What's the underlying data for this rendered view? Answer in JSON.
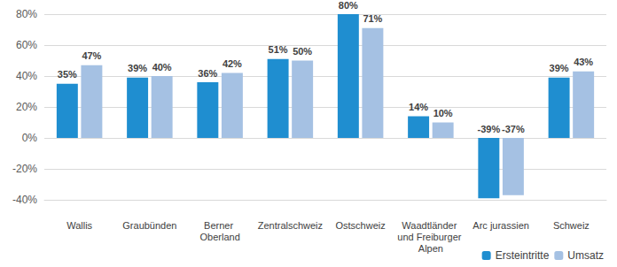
{
  "chart_data": {
    "type": "bar",
    "categories": [
      "Wallis",
      "Graubünden",
      "Berner Oberland",
      "Zentralschweiz",
      "Ostschweiz",
      "Waadtländer und Freiburger Alpen",
      "Arc jurassien",
      "Schweiz"
    ],
    "series": [
      {
        "name": "Ersteintritte",
        "color": "#1f8ed0",
        "values": [
          35,
          39,
          36,
          51,
          80,
          14,
          -39,
          39
        ],
        "value_labels": [
          "35%",
          "39%",
          "36%",
          "51%",
          "80%",
          "14%",
          "-39%",
          "39%"
        ]
      },
      {
        "name": "Umsatz",
        "color": "#a5c1e3",
        "values": [
          47,
          40,
          42,
          50,
          71,
          10,
          -37,
          43
        ],
        "value_labels": [
          "47%",
          "40%",
          "42%",
          "50%",
          "71%",
          "10%",
          "-37%",
          "43%"
        ]
      }
    ],
    "ylim": [
      -40,
      80
    ],
    "yticks": [
      {
        "value": -40,
        "label": "-40%"
      },
      {
        "value": -20,
        "label": "-20%"
      },
      {
        "value": 0,
        "label": "0%"
      },
      {
        "value": 20,
        "label": "20%"
      },
      {
        "value": 40,
        "label": "40%"
      },
      {
        "value": 60,
        "label": "60%"
      },
      {
        "value": 80,
        "label": "80%"
      }
    ],
    "grid": true,
    "legend": "bottom-right",
    "data_labels": true
  }
}
